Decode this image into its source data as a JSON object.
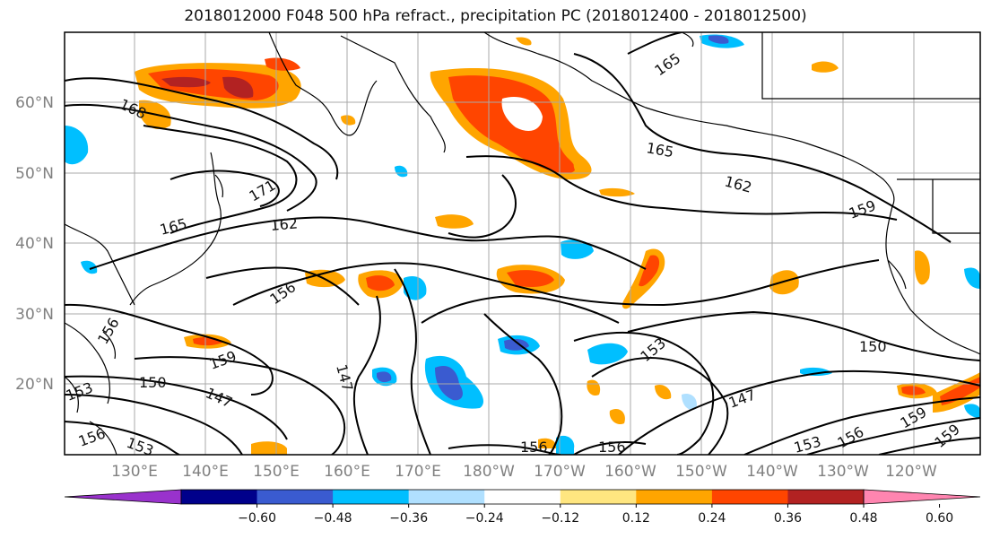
{
  "title": "2018012000 F048 500 hPa refract., precipitation PC (2018012400 - 2018012500)",
  "lat_labels": [
    "60°N",
    "50°N",
    "40°N",
    "30°N",
    "20°N"
  ],
  "lon_labels": [
    "130°E",
    "140°E",
    "150°E",
    "160°E",
    "170°E",
    "180°W",
    "170°W",
    "160°W",
    "150°W",
    "140°W",
    "130°W",
    "120°W"
  ],
  "contour_labels": [
    "168",
    "165",
    "171",
    "165",
    "162",
    "156",
    "156",
    "159",
    "150",
    "147",
    "153",
    "147",
    "156",
    "153",
    "165",
    "162",
    "159",
    "153",
    "150",
    "147",
    "156",
    "156",
    "153",
    "156",
    "159",
    "159"
  ],
  "colorbar": {
    "ticks": [
      "−0.60",
      "−0.48",
      "−0.36",
      "−0.24",
      "−0.12",
      "0.12",
      "0.24",
      "0.36",
      "0.48",
      "0.60"
    ],
    "colors": [
      "#9932cc",
      "#00008b",
      "#3a5bd0",
      "#00bfff",
      "#b0e0ff",
      "#ffffff",
      "#ffe680",
      "#ffa500",
      "#ff4500",
      "#b22222",
      "#ff85b0"
    ]
  }
}
